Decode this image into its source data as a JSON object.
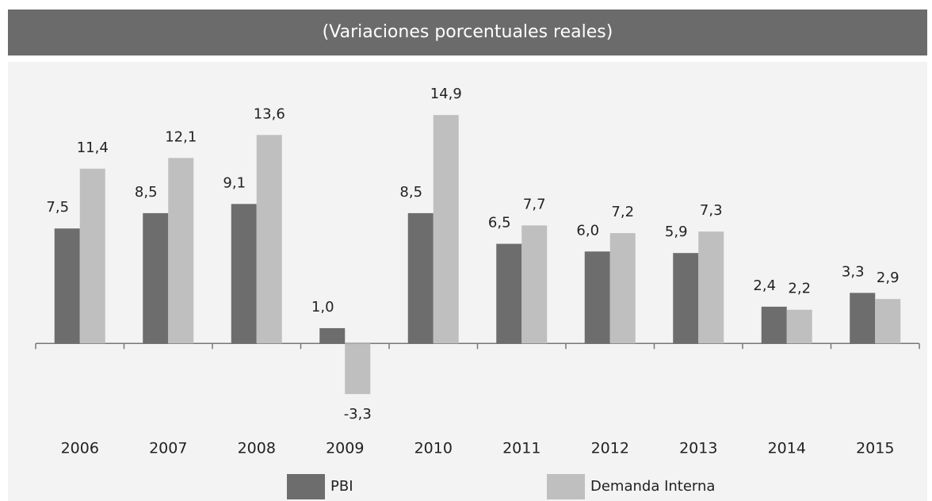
{
  "chart_data": {
    "type": "bar",
    "title": "(Variaciones porcentuales reales)",
    "categories": [
      "2006",
      "2007",
      "2008",
      "2009",
      "2010",
      "2011",
      "2012",
      "2013",
      "2014",
      "2015"
    ],
    "series": [
      {
        "name": "PBI",
        "color": "#6d6d6d",
        "values": [
          7.5,
          8.5,
          9.1,
          1.0,
          8.5,
          6.5,
          6.0,
          5.9,
          2.4,
          3.3
        ],
        "value_labels": [
          "7,5",
          "8,5",
          "9,1",
          "1,0",
          "8,5",
          "6,5",
          "6,0",
          "5,9",
          "2,4",
          "3,3"
        ]
      },
      {
        "name": "Demanda Interna",
        "color": "#bfbfbf",
        "values": [
          11.4,
          12.1,
          13.6,
          -3.3,
          14.9,
          7.7,
          7.2,
          7.3,
          2.2,
          2.9
        ],
        "value_labels": [
          "11,4",
          "12,1",
          "13,6",
          "-3,3",
          "14,9",
          "7,7",
          "7,2",
          "7,3",
          "2,2",
          "2,9"
        ]
      }
    ],
    "ylim": [
      -5,
      17
    ]
  }
}
